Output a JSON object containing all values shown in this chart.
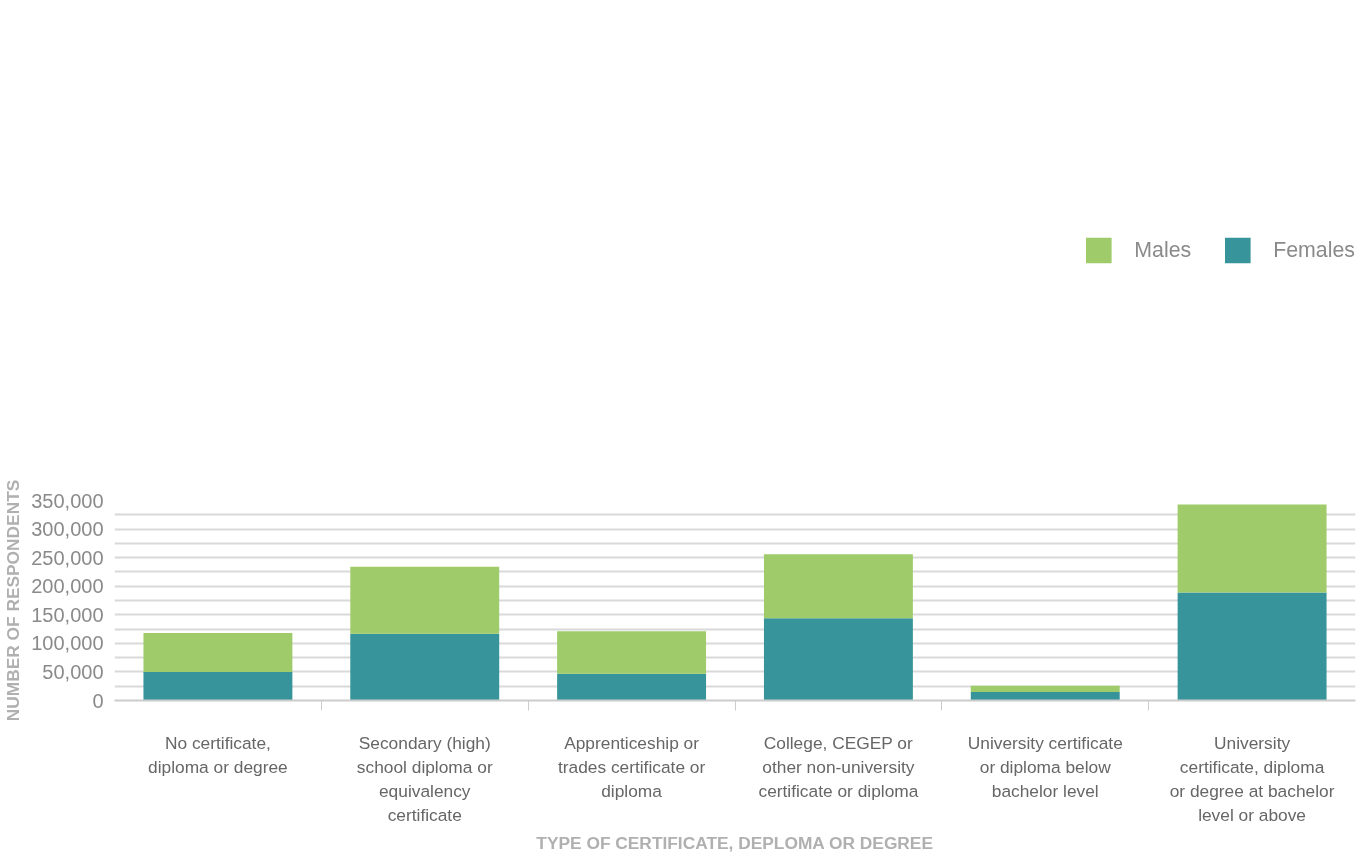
{
  "chart_data": {
    "type": "bar",
    "stacked": true,
    "xlabel": "TYPE OF CERTIFICATE, DEPLOMA OR DEGREE",
    "ylabel": "NUMBER OF RESPONDENTS",
    "categories": [
      "No certificate, diploma or degree",
      "Secondary (high) school diploma or equivalency certificate",
      "Apprenticeship or trades certificate or diploma",
      "College, CEGEP or other non-university certificate or diploma",
      "University certificate or diploma below bachelor level",
      "University certificate, diploma or degree at bachelor level or above"
    ],
    "series": [
      {
        "name": "Females",
        "color": "#36949a",
        "values": [
          50000,
          117000,
          47000,
          144000,
          15000,
          189000
        ]
      },
      {
        "name": "Males",
        "color": "#9fcb6b",
        "values": [
          68000,
          117000,
          74000,
          112000,
          11000,
          154000
        ]
      }
    ],
    "ylim": [
      0,
      350000
    ],
    "yticks": [
      0,
      {
        "value": 25000,
        "label": null
      },
      {
        "value": 50000,
        "label": "50,000"
      },
      {
        "value": 75000,
        "label": null
      },
      {
        "value": 100000,
        "label": "100,000"
      },
      {
        "value": 125000,
        "label": null
      },
      {
        "value": 150000,
        "label": "150,000"
      },
      {
        "value": 175000,
        "label": null
      },
      {
        "value": 200000,
        "label": "200,000"
      },
      {
        "value": 225000,
        "label": null
      },
      {
        "value": 250000,
        "label": "250,000"
      },
      {
        "value": 275000,
        "label": null
      },
      {
        "value": 300000,
        "label": "300,000"
      },
      {
        "value": 325000,
        "label": null
      },
      {
        "value": 350000,
        "label": "350,000"
      }
    ],
    "grid": "y",
    "legend": "top right"
  }
}
